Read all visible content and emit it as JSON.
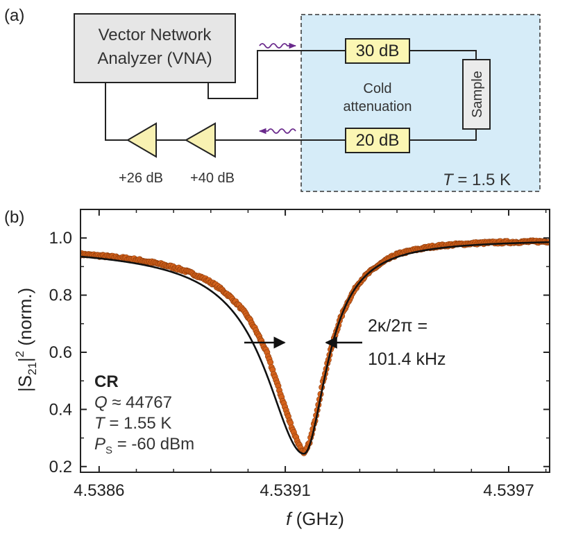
{
  "panel_a": {
    "label": "(a)",
    "vna_line1": "Vector Network",
    "vna_line2": "Analyzer (VNA)",
    "att_top": "30 dB",
    "att_bottom": "20 dB",
    "cold_line1": "Cold",
    "cold_line2": "attenuation",
    "sample": "Sample",
    "amp1_gain": "+26 dB",
    "amp2_gain": "+40 dB",
    "temp_symbol": "T",
    "temp_value": " = 1.5 K",
    "colors": {
      "fridge_fill": "#d6ecf8",
      "attenuator_fill": "#fbf6b3",
      "amplifier_fill": "#f8f1b2",
      "vna_fill": "#e6e6e6",
      "sample_fill": "#ebebeb",
      "signal_arrow": "#6a2a8c"
    }
  },
  "panel_b": {
    "label": "(b)",
    "ylabel_prefix": "|S",
    "ylabel_sub": "21",
    "ylabel_suffix": "|",
    "ylabel_sup": "2",
    "ylabel_tail": " (norm.)",
    "xlabel_symbol": "f",
    "xlabel_unit": " (GHz)",
    "width_line1": "2κ/2π =",
    "width_line2": "101.4 kHz",
    "info_title": "CR",
    "q_symbol": "Q",
    "q_value": " ≈ 44767",
    "t_symbol": "T",
    "t_value": " = 1.55 K",
    "p_symbol": "P",
    "p_sub": "S",
    "p_value": " -60 dBm",
    "colors": {
      "data_points": "#d4621c",
      "data_edge": "#8a3a0a",
      "fit_line": "#111111"
    }
  },
  "chart_data": {
    "type": "scatter",
    "title": "",
    "xlabel": "f (GHz)",
    "ylabel": "|S21|^2 (norm.)",
    "xlim": [
      4.53855,
      4.53981
    ],
    "ylim": [
      0.18,
      1.1
    ],
    "x_ticks": [
      "4.5386",
      "4.5391",
      "4.5397"
    ],
    "x_tick_values": [
      4.5386,
      4.5391,
      4.5397
    ],
    "y_ticks": [
      "0.2",
      "0.4",
      "0.6",
      "0.8",
      "1.0"
    ],
    "y_tick_values": [
      0.2,
      0.4,
      0.6,
      0.8,
      1.0
    ],
    "grid": false,
    "series": [
      {
        "kind": "measured",
        "x": [
          4.5385,
          4.5386,
          4.5387,
          4.5388,
          4.5389,
          4.539,
          4.53905,
          4.5391,
          4.53913,
          4.53915,
          4.53917,
          4.5392,
          4.53925,
          4.5393,
          4.5394,
          4.5395,
          4.5396,
          4.5397,
          4.5398
        ],
        "y": [
          0.965,
          0.96,
          0.955,
          0.94,
          0.915,
          0.86,
          0.78,
          0.55,
          0.38,
          0.245,
          0.34,
          0.52,
          0.72,
          0.85,
          0.965,
          0.99,
          0.995,
          0.995,
          0.995
        ]
      },
      {
        "kind": "fit",
        "curve": "asymmetric-lorentzian",
        "center": 4.53915,
        "min": 0.245,
        "baseline_left": 0.965,
        "baseline_right": 0.995
      }
    ],
    "annotations": [
      "2κ/2π = 101.4 kHz",
      "CR",
      "Q ≈ 44767",
      "T = 1.55 K",
      "PS = -60 dBm"
    ]
  }
}
